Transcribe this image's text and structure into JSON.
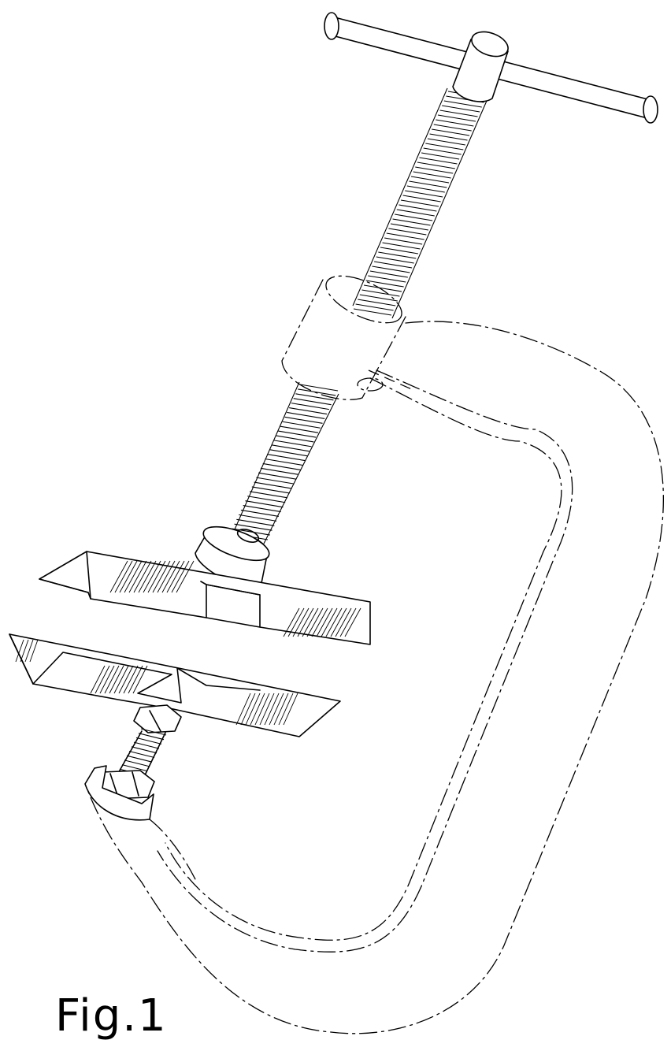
{
  "caption": "Fig.1"
}
